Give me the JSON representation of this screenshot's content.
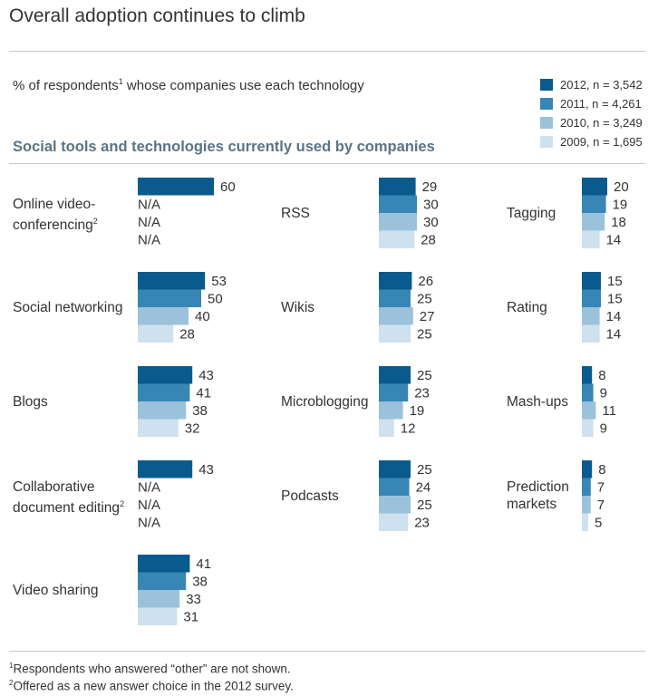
{
  "header": {
    "title": "Overall adoption continues to climb",
    "subtitle": "% of respondents",
    "subtitle_sup": "1",
    "subtitle_rest": " whose companies use each technology",
    "section_title": "Social tools and technologies currently used by companies"
  },
  "legend": [
    {
      "label": "2012, n = 3,542",
      "color": "#0b5a8e"
    },
    {
      "label": "2011, n = 4,261",
      "color": "#3886b5"
    },
    {
      "label": "2010, n = 3,249",
      "color": "#9bc2da"
    },
    {
      "label": "2009, n = 1,695",
      "color": "#cde1ee"
    }
  ],
  "chart_data": {
    "type": "bar",
    "orientation": "horizontal",
    "title": "Overall adoption continues to climb",
    "subtitle": "% of respondents whose companies use each technology",
    "series_names": [
      "2012, n = 3,542",
      "2011, n = 4,261",
      "2010, n = 3,249",
      "2009, n = 1,695"
    ],
    "na_label": "N/A",
    "categories": [
      {
        "id": "online-video-conferencing",
        "label_lines": [
          "Online video-",
          "conferencing"
        ],
        "sup": "2",
        "values": [
          60,
          null,
          null,
          null
        ]
      },
      {
        "id": "social-networking",
        "label_lines": [
          "Social networking"
        ],
        "sup": "",
        "values": [
          53,
          50,
          40,
          28
        ]
      },
      {
        "id": "blogs",
        "label_lines": [
          "Blogs"
        ],
        "sup": "",
        "values": [
          43,
          41,
          38,
          32
        ]
      },
      {
        "id": "collaborative-document-editing",
        "label_lines": [
          "Collaborative",
          "document editing"
        ],
        "sup": "2",
        "values": [
          43,
          null,
          null,
          null
        ]
      },
      {
        "id": "video-sharing",
        "label_lines": [
          "Video sharing"
        ],
        "sup": "",
        "values": [
          41,
          38,
          33,
          31
        ]
      },
      {
        "id": "rss",
        "label_lines": [
          "RSS"
        ],
        "sup": "",
        "values": [
          29,
          30,
          30,
          28
        ]
      },
      {
        "id": "wikis",
        "label_lines": [
          "Wikis"
        ],
        "sup": "",
        "values": [
          26,
          25,
          27,
          25
        ]
      },
      {
        "id": "microblogging",
        "label_lines": [
          "Microblogging"
        ],
        "sup": "",
        "values": [
          25,
          23,
          19,
          12
        ]
      },
      {
        "id": "podcasts",
        "label_lines": [
          "Podcasts"
        ],
        "sup": "",
        "values": [
          25,
          24,
          25,
          23
        ]
      },
      {
        "id": "tagging",
        "label_lines": [
          "Tagging"
        ],
        "sup": "",
        "values": [
          20,
          19,
          18,
          14
        ]
      },
      {
        "id": "rating",
        "label_lines": [
          "Rating"
        ],
        "sup": "",
        "values": [
          15,
          15,
          14,
          14
        ]
      },
      {
        "id": "mash-ups",
        "label_lines": [
          "Mash-ups"
        ],
        "sup": "",
        "values": [
          8,
          9,
          11,
          9
        ]
      },
      {
        "id": "prediction-markets",
        "label_lines": [
          "Prediction",
          "markets"
        ],
        "sup": "",
        "values": [
          8,
          7,
          7,
          5
        ]
      }
    ]
  },
  "footnotes": [
    {
      "sup": "1",
      "text": "Respondents who answered “other” are not shown."
    },
    {
      "sup": "2",
      "text": "Offered as a new answer choice in the 2012 survey."
    }
  ]
}
